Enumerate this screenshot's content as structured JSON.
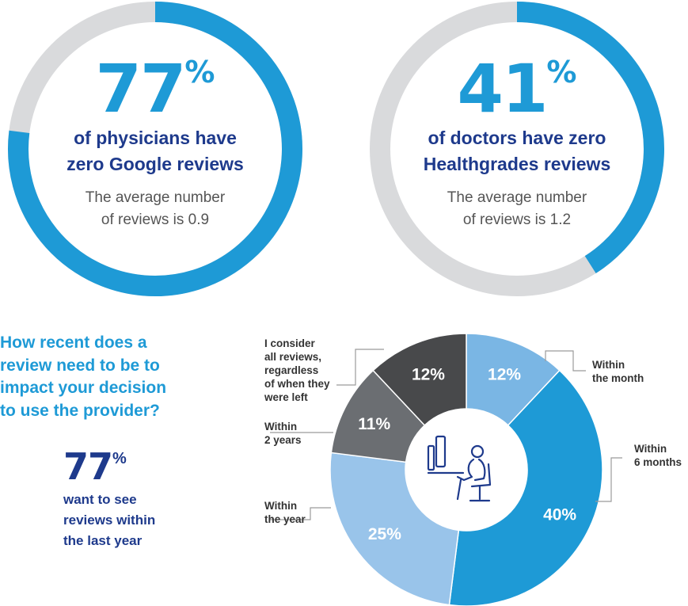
{
  "stat_google": {
    "number": "77",
    "percent_sign": "%",
    "headline_line1": "of physicians have",
    "headline_line2": "zero Google reviews",
    "sub_line1": "The average number",
    "sub_line2": "of reviews is 0.9"
  },
  "stat_healthgrades": {
    "number": "41",
    "percent_sign": "%",
    "headline_line1": "of doctors have zero",
    "headline_line2": "Healthgrades reviews",
    "sub_line1": "The average number",
    "sub_line2": "of reviews is 1.2"
  },
  "question": {
    "line1": "How recent does a",
    "line2": "review need to be to",
    "line3": "impact your decision",
    "line4": "to use the provider?"
  },
  "stat_last_year": {
    "number": "77",
    "percent_sign": "%",
    "line1": "want to see",
    "line2": "reviews within",
    "line3": "the last year"
  },
  "icon": "person-at-desk-computer-icon",
  "colors": {
    "accent_blue": "#1e9ad6",
    "navy": "#1e3a8c",
    "ring_track": "#d9dadc",
    "slice_month": "#7ab6e4",
    "slice_6months": "#1e9ad6",
    "slice_year": "#99c4ea",
    "slice_2years": "#6b6e72",
    "slice_all": "#48494b"
  },
  "chart_data": [
    {
      "type": "pie",
      "values": [
        77,
        23
      ],
      "labels": [
        "77%",
        ""
      ],
      "colors": [
        "#1e9ad6",
        "#d9dadc"
      ]
    },
    {
      "type": "pie",
      "values": [
        41,
        59
      ],
      "labels": [
        "41%",
        ""
      ],
      "colors": [
        "#1e9ad6",
        "#d9dadc"
      ]
    },
    {
      "type": "pie",
      "categories": [
        "Within the month",
        "Within 6 months",
        "Within the year",
        "Within 2 years",
        "I consider all reviews, regardless of when they were left"
      ],
      "values": [
        12,
        40,
        25,
        11,
        12
      ],
      "value_labels": [
        "12%",
        "40%",
        "25%",
        "11%",
        "12%"
      ],
      "colors": [
        "#7ab6e4",
        "#1e9ad6",
        "#99c4ea",
        "#6b6e72",
        "#48494b"
      ],
      "callouts": [
        [
          "Within",
          "the month"
        ],
        [
          "Within",
          "6 months"
        ],
        [
          "Within",
          "the year"
        ],
        [
          "Within",
          "2 years"
        ],
        [
          "I consider",
          "all reviews,",
          "regardless",
          "of when they",
          "were left"
        ]
      ]
    }
  ]
}
